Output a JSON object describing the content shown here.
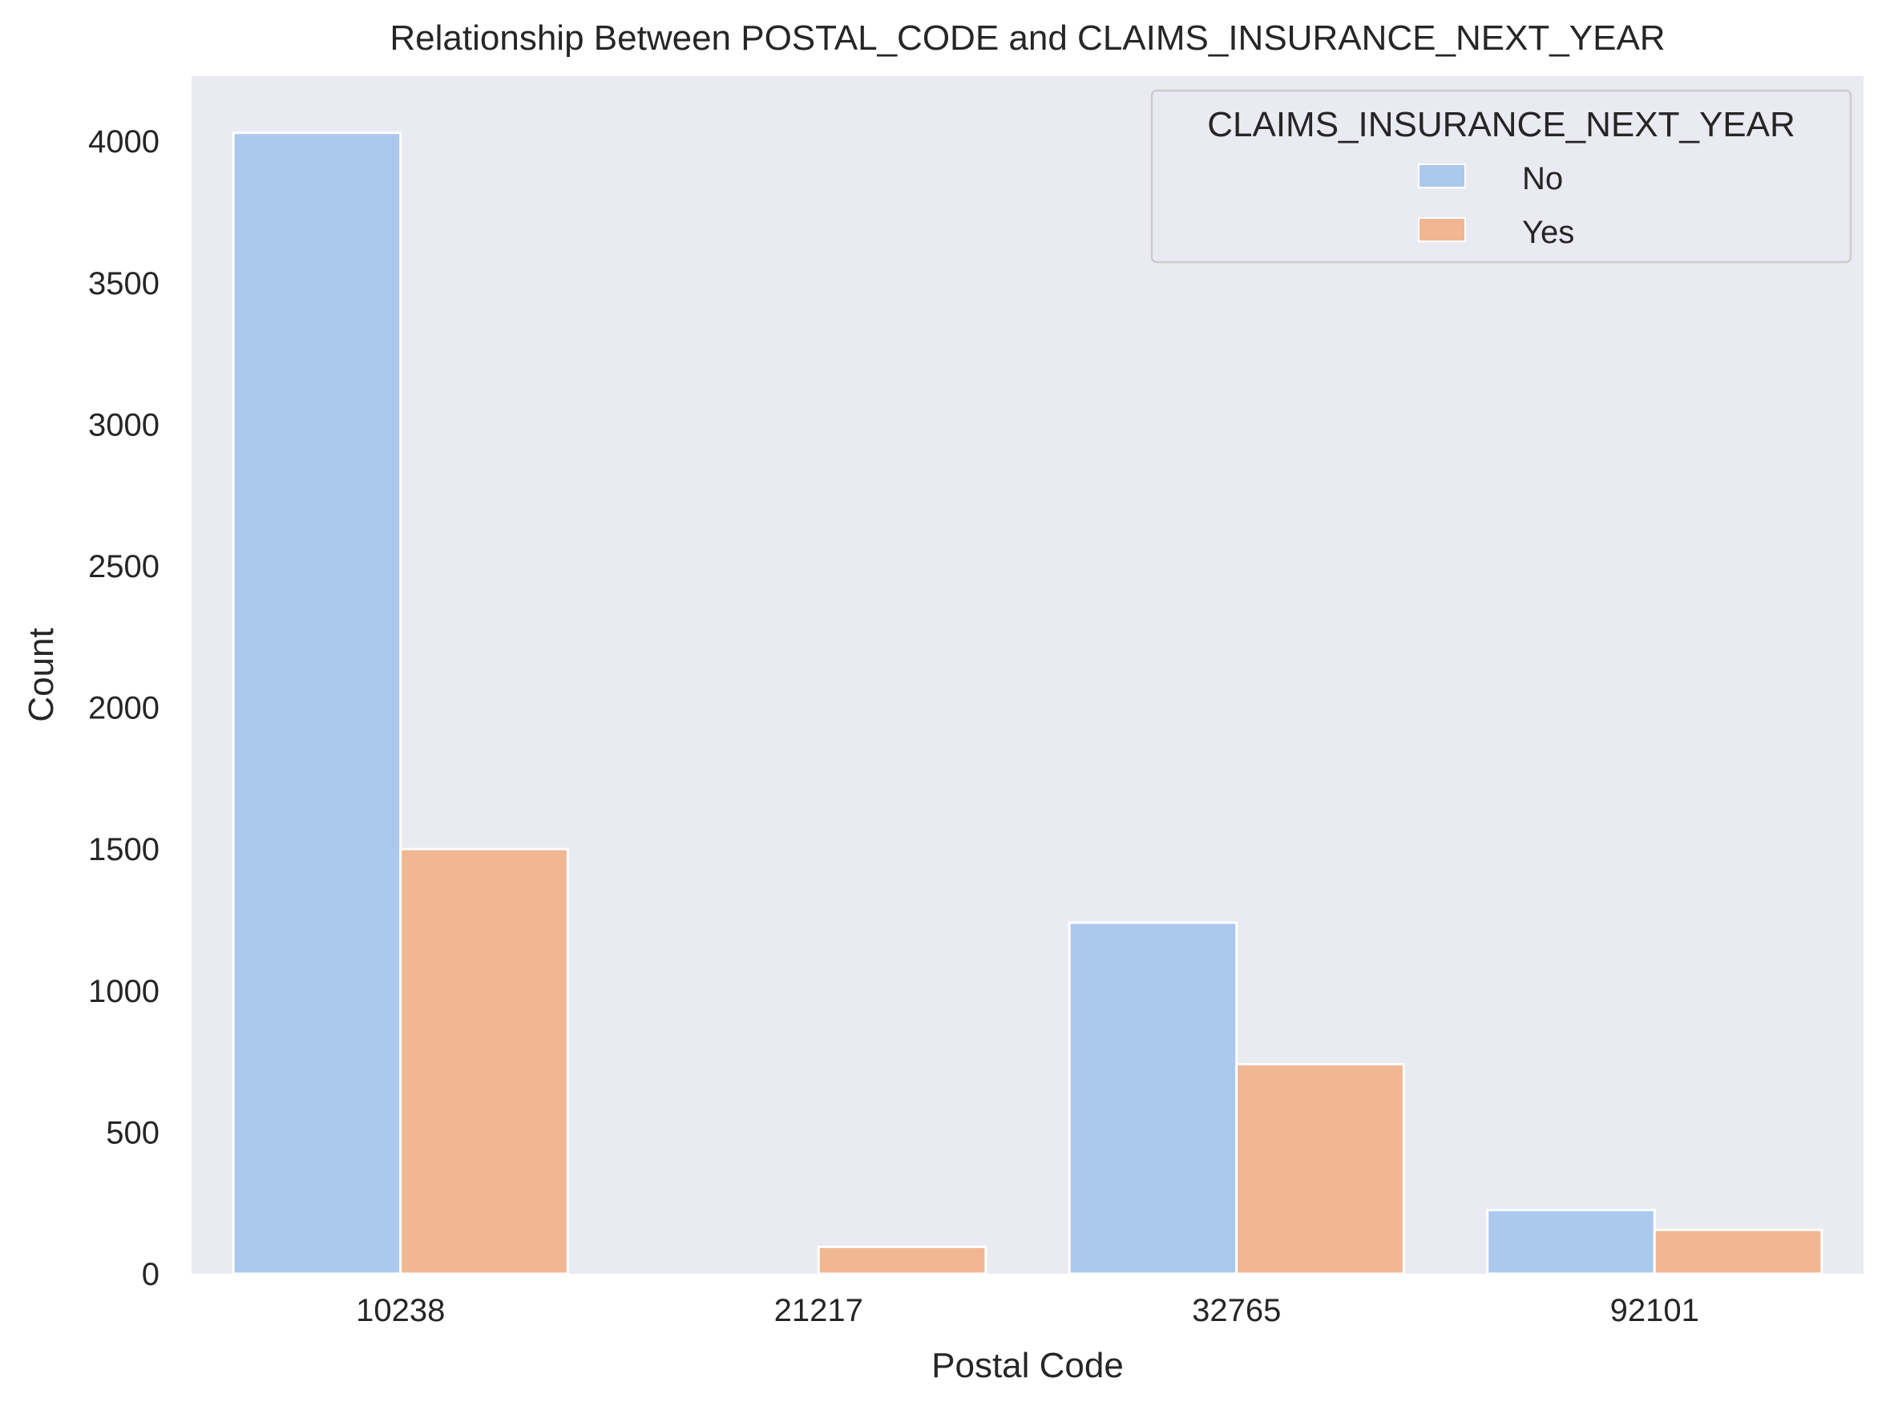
{
  "chart_data": {
    "type": "bar",
    "title": "Relationship Between POSTAL_CODE and CLAIMS_INSURANCE_NEXT_YEAR",
    "xlabel": "Postal Code",
    "ylabel": "Count",
    "categories": [
      "10238",
      "21217",
      "32765",
      "92101"
    ],
    "series": [
      {
        "name": "No",
        "color": "#abc9ed",
        "values": [
          4030,
          0,
          1240,
          225
        ]
      },
      {
        "name": "Yes",
        "color": "#f0b792",
        "values": [
          1500,
          95,
          740,
          155
        ]
      }
    ],
    "ylim": [
      0,
      4230
    ],
    "yticks": [
      0,
      500,
      1000,
      1500,
      2000,
      2500,
      3000,
      3500,
      4000
    ],
    "grid": false,
    "legend": {
      "title": "CLAIMS_INSURANCE_NEXT_YEAR",
      "placement": "top-right"
    },
    "colors": {
      "plot_background": "#eaeaf2",
      "bar_edge": "#ffffff"
    }
  }
}
